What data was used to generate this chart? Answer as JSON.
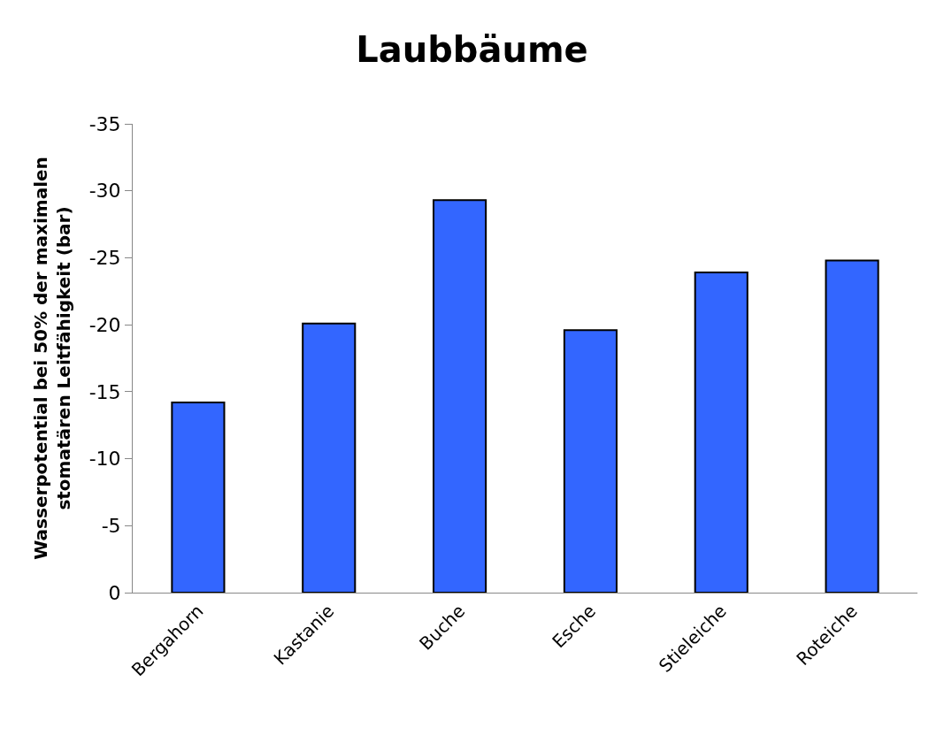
{
  "chart_data": {
    "type": "bar",
    "title": "Laubbäume",
    "ylabel": "Wasserpotential bei 50% der maximalen\nstomatären Leitfähigkeit (bar)",
    "categories": [
      "Bergahorn",
      "Kastanie",
      "Buche",
      "Esche",
      "Stieleiche",
      "Roteiche"
    ],
    "values": [
      -14.2,
      -20.1,
      -29.3,
      -19.6,
      -23.9,
      -24.8
    ],
    "color": "#3366ff",
    "ylim": [
      0,
      -35
    ],
    "yticks": [
      0,
      -5,
      -10,
      -15,
      -20,
      -25,
      -30,
      -35
    ]
  }
}
